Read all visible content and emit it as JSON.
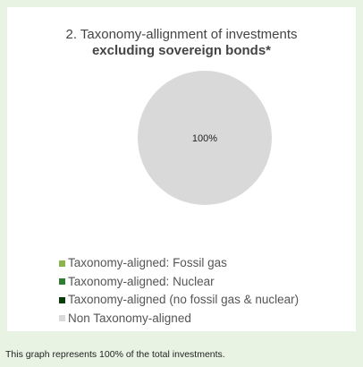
{
  "title": {
    "line1": "2. Taxonomy-allignment of investments",
    "line2": "excluding sovereign bonds*"
  },
  "chart_data": {
    "type": "pie",
    "slices": [
      {
        "label": "Taxonomy-aligned: Fossil gas",
        "value": 0,
        "color": "#8ab34a"
      },
      {
        "label": "Taxonomy-aligned: Nuclear",
        "value": 0,
        "color": "#2e7d32"
      },
      {
        "label": "Taxonomy-aligned (no fossil gas & nuclear)",
        "value": 0,
        "color": "#0b3d0b"
      },
      {
        "label": "Non Taxonomy-aligned",
        "value": 100,
        "color": "#d9d9d9"
      }
    ],
    "data_label": "100%",
    "legend_position": "bottom"
  },
  "legend": [
    {
      "label": "Taxonomy-aligned: Fossil gas",
      "color": "#8ab34a"
    },
    {
      "label": "Taxonomy-aligned: Nuclear",
      "color": "#2e7d32"
    },
    {
      "label": "Taxonomy-aligned (no fossil gas & nuclear)",
      "color": "#0b3d0b"
    },
    {
      "label": "Non Taxonomy-aligned",
      "color": "#d9d9d9"
    }
  ],
  "footnote": "This graph represents 100% of the total investments."
}
